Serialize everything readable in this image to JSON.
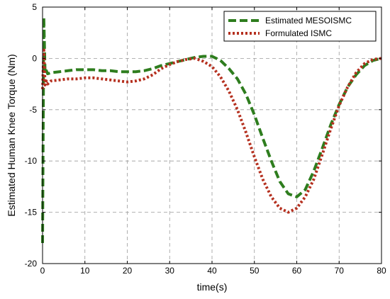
{
  "chart_data": {
    "type": "line",
    "xlabel": "time(s)",
    "ylabel": "Estimated Human Knee Torque (Nm)",
    "xlim": [
      0,
      80
    ],
    "ylim": [
      -20,
      5
    ],
    "xticks": [
      0,
      10,
      20,
      30,
      40,
      50,
      60,
      70,
      80
    ],
    "yticks": [
      5,
      0,
      -5,
      -10,
      -15,
      -20
    ],
    "grid": true,
    "legend_position": "top-right",
    "series": [
      {
        "name": "Estimated MESOISMC",
        "color": "#2e7d1e",
        "style": "dashed",
        "x": [
          0,
          0.3,
          0.6,
          0.9,
          1.2,
          2,
          4,
          6,
          8,
          10,
          12,
          14,
          16,
          18,
          20,
          22,
          24,
          26,
          28,
          30,
          32,
          34,
          36,
          38,
          40,
          42,
          44,
          46,
          48,
          50,
          52,
          54,
          56,
          58,
          60,
          62,
          64,
          66,
          68,
          70,
          72,
          74,
          76,
          78,
          80
        ],
        "y": [
          -18,
          4,
          -1.5,
          -1.2,
          -1.5,
          -1.4,
          -1.3,
          -1.2,
          -1.1,
          -1.1,
          -1.1,
          -1.2,
          -1.2,
          -1.3,
          -1.3,
          -1.3,
          -1.2,
          -1.0,
          -0.7,
          -0.5,
          -0.3,
          -0.1,
          0.1,
          0.2,
          0.2,
          -0.2,
          -1.0,
          -2.0,
          -3.5,
          -5.5,
          -7.8,
          -10.0,
          -12.0,
          -13.2,
          -13.5,
          -12.8,
          -11.0,
          -8.8,
          -6.5,
          -4.5,
          -2.8,
          -1.6,
          -0.7,
          -0.2,
          0.0
        ]
      },
      {
        "name": "Formulated ISMC",
        "color": "#b5301f",
        "style": "dotted",
        "x": [
          0,
          0.3,
          0.6,
          0.9,
          1.2,
          2,
          4,
          6,
          8,
          10,
          12,
          14,
          16,
          18,
          20,
          22,
          24,
          26,
          28,
          30,
          32,
          34,
          36,
          38,
          40,
          42,
          44,
          46,
          48,
          50,
          52,
          54,
          56,
          58,
          60,
          62,
          64,
          66,
          68,
          70,
          72,
          74,
          76,
          78,
          80
        ],
        "y": [
          -3,
          1,
          -2.6,
          -2.2,
          -2.5,
          -2.2,
          -2.1,
          -2.0,
          -2.0,
          -1.9,
          -1.9,
          -2.0,
          -2.1,
          -2.2,
          -2.3,
          -2.2,
          -2.0,
          -1.6,
          -1.0,
          -0.6,
          -0.3,
          -0.1,
          0.0,
          -0.3,
          -0.8,
          -1.8,
          -3.2,
          -5.0,
          -7.2,
          -9.6,
          -11.8,
          -13.5,
          -14.6,
          -15.0,
          -14.6,
          -13.5,
          -11.8,
          -9.4,
          -6.9,
          -4.6,
          -2.8,
          -1.4,
          -0.5,
          -0.1,
          0.0
        ]
      }
    ]
  }
}
